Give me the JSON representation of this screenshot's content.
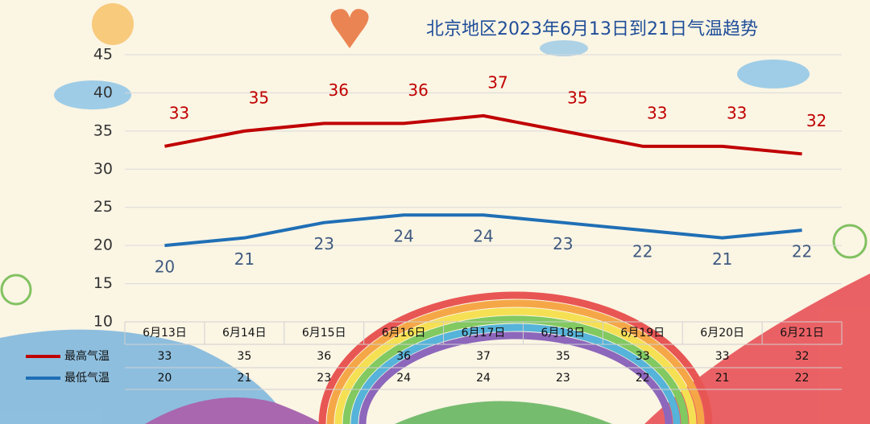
{
  "chart_data": {
    "type": "line",
    "title": "北京地区2023年6月13日到21日气温趋势",
    "categories": [
      "6月13日",
      "6月14日",
      "6月15日",
      "6月16日",
      "6月17日",
      "6月18日",
      "6月19日",
      "6月20日",
      "6月21日"
    ],
    "series": [
      {
        "name": "最高气温",
        "color": "#c00000",
        "values": [
          33,
          35,
          36,
          36,
          37,
          35,
          33,
          33,
          32
        ]
      },
      {
        "name": "最低气温",
        "color": "#1f6fb5",
        "values": [
          20,
          21,
          23,
          24,
          24,
          23,
          22,
          21,
          22
        ]
      }
    ],
    "ylim": [
      10,
      45
    ],
    "yticks": [
      10,
      15,
      20,
      25,
      30,
      35,
      40,
      45
    ],
    "grid": true,
    "data_table": true
  }
}
